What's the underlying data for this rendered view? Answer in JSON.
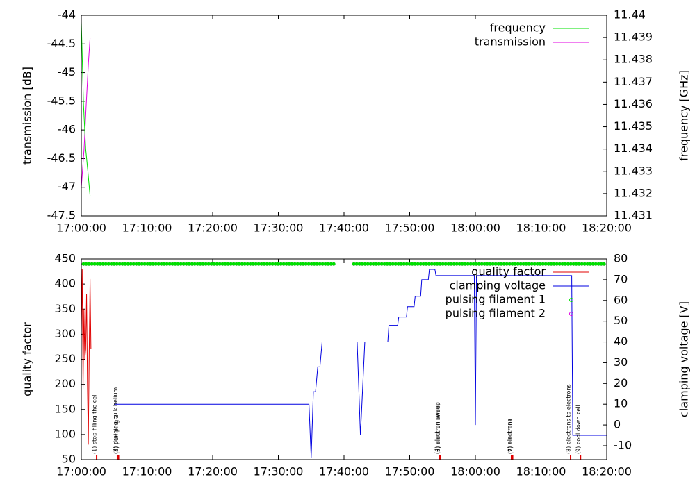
{
  "chart_data": [
    {
      "type": "line",
      "ylabel": "transmission [dB]",
      "y2label": "frequency [GHz]",
      "xlim": [
        "17:00:00",
        "18:20:00"
      ],
      "xticks": [
        "17:00:00",
        "17:10:00",
        "17:20:00",
        "17:30:00",
        "17:40:00",
        "17:50:00",
        "18:00:00",
        "18:10:00",
        "18:20:00"
      ],
      "ylim": [
        -47.5,
        -44
      ],
      "yticks": [
        -47.5,
        -47,
        -46.5,
        -46,
        -45.5,
        -45,
        -44.5,
        -44
      ],
      "y2lim": [
        11.431,
        11.44
      ],
      "y2ticks": [
        11.431,
        11.432,
        11.433,
        11.434,
        11.435,
        11.436,
        11.437,
        11.438,
        11.439,
        11.44
      ],
      "legend": "top right",
      "series": [
        {
          "name": "frequency",
          "color": "#00e000",
          "axis": "y2",
          "style": "lines",
          "x": [
            "17:00:00",
            "17:00:20",
            "17:00:40",
            "17:01:00",
            "17:01:20"
          ],
          "values": [
            11.4397,
            11.436,
            11.434,
            11.433,
            11.4319
          ]
        },
        {
          "name": "transmission",
          "color": "#e000e0",
          "style": "lines",
          "x": [
            "17:00:00",
            "17:00:25",
            "17:00:45",
            "17:01:05",
            "17:01:20"
          ],
          "values": [
            -47.0,
            -46.34,
            -45.55,
            -44.83,
            -44.4
          ]
        }
      ]
    },
    {
      "type": "line",
      "ylabel": "quality factor",
      "y2label": "clamping voltage [V]",
      "xlim": [
        "17:00:00",
        "18:20:00"
      ],
      "xticks": [
        "17:00:00",
        "17:10:00",
        "17:20:00",
        "17:30:00",
        "17:40:00",
        "17:50:00",
        "18:00:00",
        "18:10:00",
        "18:20:00"
      ],
      "ylim": [
        50,
        450
      ],
      "yticks": [
        50,
        100,
        150,
        200,
        250,
        300,
        350,
        400,
        450
      ],
      "y2lim": [
        -16.7,
        80
      ],
      "y2ticks": [
        -10,
        0,
        10,
        20,
        30,
        40,
        50,
        60,
        70,
        80
      ],
      "legend": "top right",
      "series": [
        {
          "name": "quality factor",
          "color": "#e00000",
          "style": "lines",
          "x": [
            "17:00:00",
            "17:00:08",
            "17:00:16",
            "17:00:24",
            "17:00:32",
            "17:00:40",
            "17:00:48",
            "17:00:56",
            "17:01:04",
            "17:01:12",
            "17:01:20",
            "17:01:28"
          ],
          "values": [
            300,
            430,
            190,
            350,
            250,
            270,
            380,
            200,
            80,
            260,
            410,
            270
          ]
        },
        {
          "name": "clamping voltage",
          "color": "#0000e0",
          "axis": "y2",
          "style": "lines",
          "x": [
            "17:05:00",
            "17:34:40",
            "17:35:00",
            "17:35:20",
            "17:35:40",
            "17:36:00",
            "17:36:20",
            "17:36:40",
            "17:42:00",
            "17:42:30",
            "17:43:10",
            "17:46:40",
            "17:46:50",
            "17:48:10",
            "17:48:20",
            "17:49:30",
            "17:49:40",
            "17:50:40",
            "17:50:50",
            "17:51:40",
            "17:51:50",
            "17:52:50",
            "17:53:00",
            "17:53:50",
            "17:54:00",
            "17:59:50",
            "18:00:00",
            "18:00:10",
            "18:14:40",
            "18:14:50",
            "18:20:00"
          ],
          "values": [
            10,
            10,
            -16,
            16,
            16,
            28,
            28,
            40,
            40,
            -5,
            40,
            40,
            48,
            48,
            52,
            52,
            57,
            57,
            62,
            62,
            70,
            70,
            75,
            75,
            72,
            72,
            0,
            72,
            72,
            -5,
            -5
          ]
        },
        {
          "name": "pulsing filament 1",
          "color": "#00e000",
          "style": "points",
          "x": [
            "17:00:20",
            "17:38:30",
            null,
            "17:41:30",
            "18:20:00"
          ],
          "values": [
            440,
            440,
            null,
            440,
            440
          ]
        },
        {
          "name": "pulsing filament 2",
          "color": "#e000e0",
          "style": "points",
          "x": [
            "17:00:20",
            "17:38:30",
            null,
            "17:41:30",
            "18:20:00"
          ],
          "values": [
            440,
            440,
            null,
            440,
            440
          ]
        }
      ],
      "annotations": [
        {
          "x": "17:02:20",
          "text": "(1) stop filling the cell"
        },
        {
          "x": "17:05:30",
          "text": "(2) draining bulk helium"
        },
        {
          "x": "17:05:40",
          "text": "(3) pumping 2"
        },
        {
          "x": "17:54:30",
          "text": "(4) electron sweep"
        },
        {
          "x": "17:54:40",
          "text": "(5) electron sweep"
        },
        {
          "x": "18:05:30",
          "text": "(6) electrons"
        },
        {
          "x": "18:05:40",
          "text": "(7) electrons"
        },
        {
          "x": "18:14:30",
          "text": "(8) electrons to electrons"
        },
        {
          "x": "18:16:00",
          "text": "(9) cool down cell"
        }
      ]
    }
  ]
}
